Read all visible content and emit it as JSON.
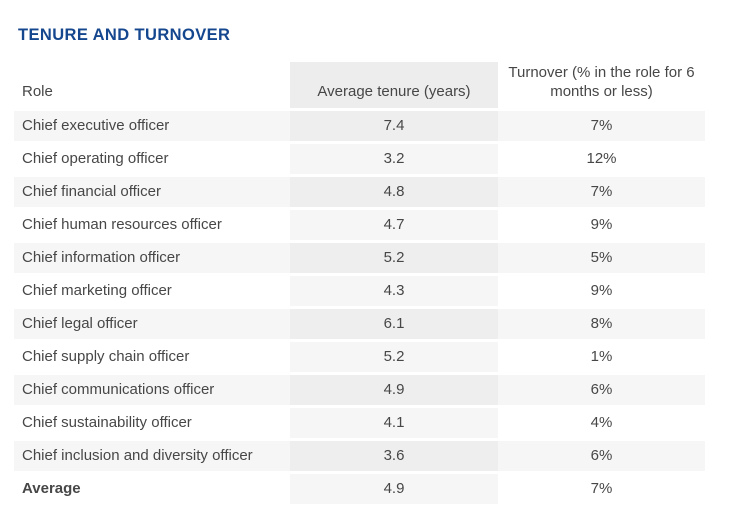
{
  "title": "TENURE AND TURNOVER",
  "colors": {
    "title_blue": "#15478f",
    "body_text": "#474747",
    "row_shade": "#f6f6f6",
    "highlight_column_shade": "#eeeeee",
    "header_column_shade": "#ededed"
  },
  "table": {
    "columns": [
      {
        "label": "Role"
      },
      {
        "label": "Average tenure (years)"
      },
      {
        "label": "Turnover (% in the role for 6 months or less)"
      }
    ],
    "rows": [
      {
        "role": "Chief executive officer",
        "tenure": "7.4",
        "turnover": "7%"
      },
      {
        "role": "Chief operating officer",
        "tenure": "3.2",
        "turnover": "12%"
      },
      {
        "role": "Chief financial officer",
        "tenure": "4.8",
        "turnover": "7%"
      },
      {
        "role": "Chief human resources officer",
        "tenure": "4.7",
        "turnover": "9%"
      },
      {
        "role": "Chief information officer",
        "tenure": "5.2",
        "turnover": "5%"
      },
      {
        "role": "Chief marketing officer",
        "tenure": "4.3",
        "turnover": "9%"
      },
      {
        "role": "Chief legal officer",
        "tenure": "6.1",
        "turnover": "8%"
      },
      {
        "role": "Chief supply chain officer",
        "tenure": "5.2",
        "turnover": "1%"
      },
      {
        "role": "Chief communications officer",
        "tenure": "4.9",
        "turnover": "6%"
      },
      {
        "role": "Chief sustainability officer",
        "tenure": "4.1",
        "turnover": "4%"
      },
      {
        "role": "Chief inclusion and diversity officer",
        "tenure": "3.6",
        "turnover": "6%"
      },
      {
        "role": "Average",
        "tenure": "4.9",
        "turnover": "7%",
        "emphasis": true
      }
    ]
  }
}
